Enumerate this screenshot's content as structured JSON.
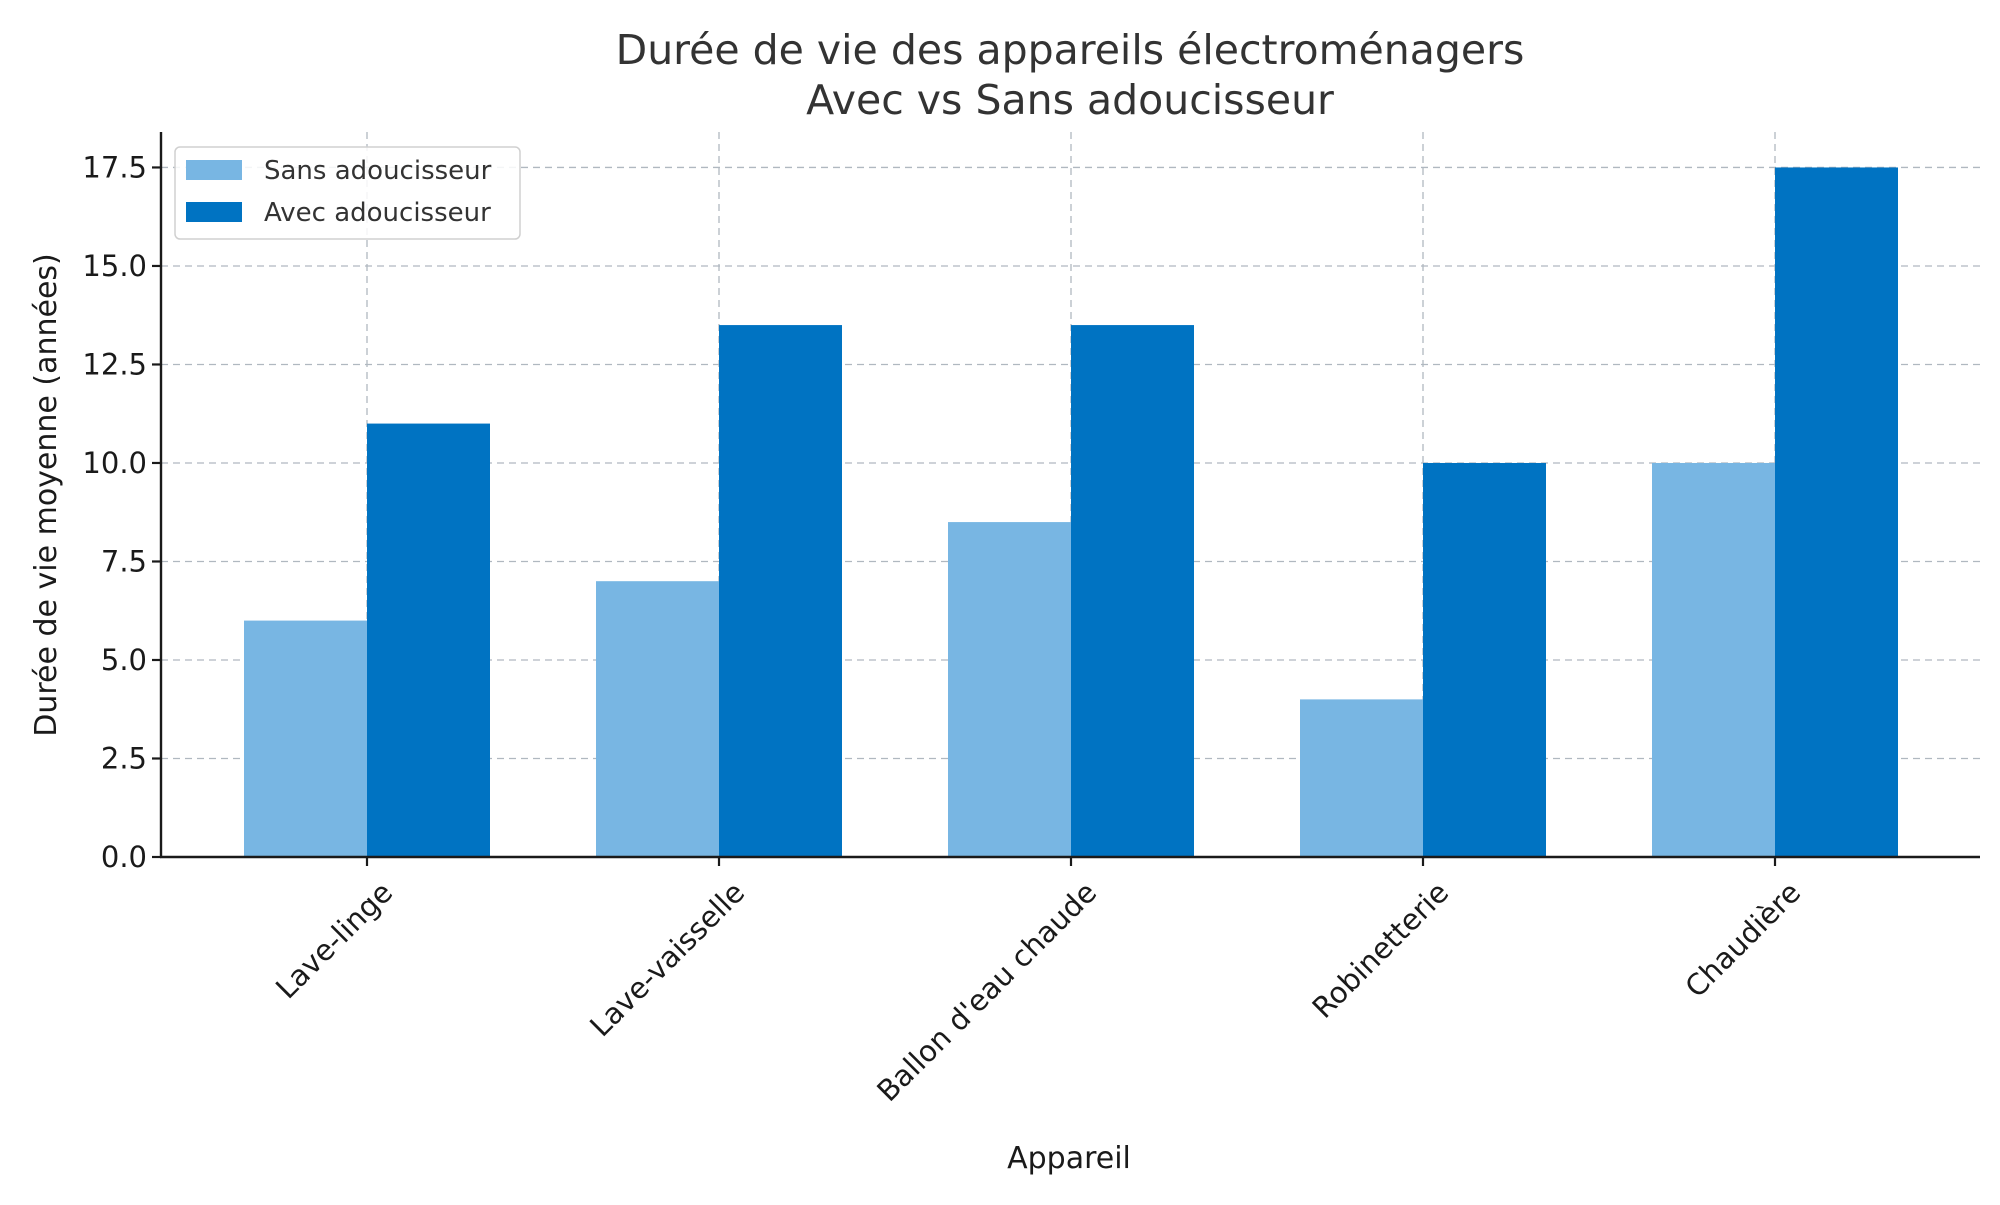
{
  "chart_data": {
    "type": "bar",
    "title": "Durée de vie des appareils électroménagers",
    "subtitle": "Avec vs Sans adoucisseur",
    "xlabel": "Appareil",
    "ylabel": "Durée de vie moyenne (années)",
    "categories": [
      "Lave-linge",
      "Lave-vaisselle",
      "Ballon d'eau chaude",
      "Robinetterie",
      "Chaudière"
    ],
    "series": [
      {
        "name": "Sans adoucisseur",
        "values": [
          6,
          7,
          8.5,
          4,
          10
        ],
        "color": "#78b6e3"
      },
      {
        "name": "Avec adoucisseur",
        "values": [
          11,
          13.5,
          13.5,
          10,
          17.5
        ],
        "color": "#0073c2"
      }
    ],
    "ylim": [
      0,
      18.4
    ],
    "yticks": [
      0,
      2.5,
      5,
      7.5,
      10,
      12.5,
      15,
      17.5
    ],
    "ytick_labels": [
      "0.0",
      "2.5",
      "5.0",
      "7.5",
      "10.0",
      "12.5",
      "15.0",
      "17.5"
    ],
    "grid": true,
    "legend_position": "top-left"
  }
}
